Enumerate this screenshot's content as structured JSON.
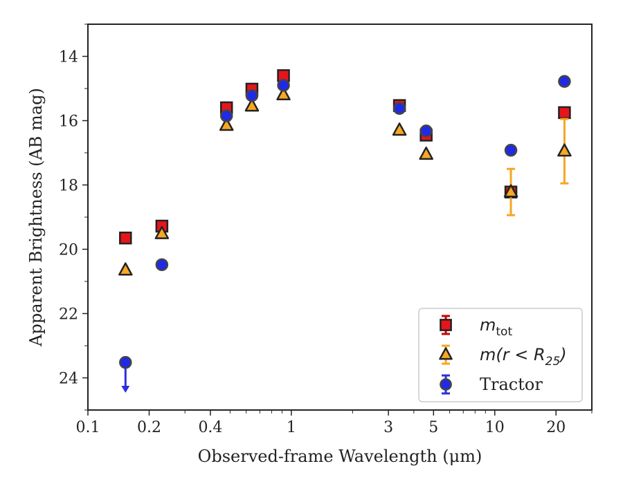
{
  "chart_data": {
    "type": "scatter",
    "xlabel": "Observed-frame Wavelength (μm)",
    "ylabel": "Apparent Brightness (AB mag)",
    "x_scale": "log",
    "y_inverted": true,
    "xlim": [
      0.1,
      30
    ],
    "ylim": [
      25,
      13
    ],
    "x_ticks": [
      0.1,
      0.2,
      0.4,
      1,
      3,
      5,
      10,
      20
    ],
    "x_tick_labels": [
      "0.1",
      "0.2",
      "0.4",
      "1",
      "3",
      "5",
      "10",
      "20"
    ],
    "y_ticks": [
      14,
      16,
      18,
      20,
      22,
      24
    ],
    "y_tick_labels": [
      "14",
      "16",
      "18",
      "20",
      "22",
      "24"
    ],
    "grid": false,
    "legend_position": "lower-right",
    "series": [
      {
        "name": "m_tot",
        "legend_main": "m",
        "legend_sub": "tot",
        "marker": "square",
        "fill": "#e8141b",
        "errcolor": "#cc0000",
        "points": [
          {
            "x": 0.153,
            "y": 19.65
          },
          {
            "x": 0.231,
            "y": 19.28
          },
          {
            "x": 0.48,
            "y": 15.6
          },
          {
            "x": 0.64,
            "y": 15.02
          },
          {
            "x": 0.915,
            "y": 14.6
          },
          {
            "x": 3.4,
            "y": 15.53
          },
          {
            "x": 4.6,
            "y": 16.45
          },
          {
            "x": 12.0,
            "y": 18.22,
            "err": 0.15
          },
          {
            "x": 22.0,
            "y": 15.75
          }
        ]
      },
      {
        "name": "m(r < R_25)",
        "legend_main": "m(r < R",
        "legend_sub": "25",
        "legend_tail": ")",
        "marker": "triangle",
        "fill": "#f7a823",
        "errcolor": "#f5a623",
        "points": [
          {
            "x": 0.153,
            "y": 20.65
          },
          {
            "x": 0.231,
            "y": 19.52
          },
          {
            "x": 0.48,
            "y": 16.15
          },
          {
            "x": 0.64,
            "y": 15.55
          },
          {
            "x": 0.915,
            "y": 15.2
          },
          {
            "x": 3.4,
            "y": 16.3
          },
          {
            "x": 4.6,
            "y": 17.05
          },
          {
            "x": 12.0,
            "y": 18.22,
            "err": 0.72
          },
          {
            "x": 22.0,
            "y": 16.95,
            "err": 1.0
          }
        ]
      },
      {
        "name": "Tractor",
        "legend_main": "Tractor",
        "marker": "circle",
        "fill": "#2029e8",
        "errcolor": "#2a2ee0",
        "points": [
          {
            "x": 0.153,
            "y": 23.52,
            "upper_limit": true
          },
          {
            "x": 0.231,
            "y": 20.48
          },
          {
            "x": 0.48,
            "y": 15.85
          },
          {
            "x": 0.64,
            "y": 15.22
          },
          {
            "x": 0.915,
            "y": 14.9
          },
          {
            "x": 3.4,
            "y": 15.62
          },
          {
            "x": 4.6,
            "y": 16.32
          },
          {
            "x": 12.0,
            "y": 16.92
          },
          {
            "x": 22.0,
            "y": 14.78
          }
        ]
      }
    ]
  }
}
